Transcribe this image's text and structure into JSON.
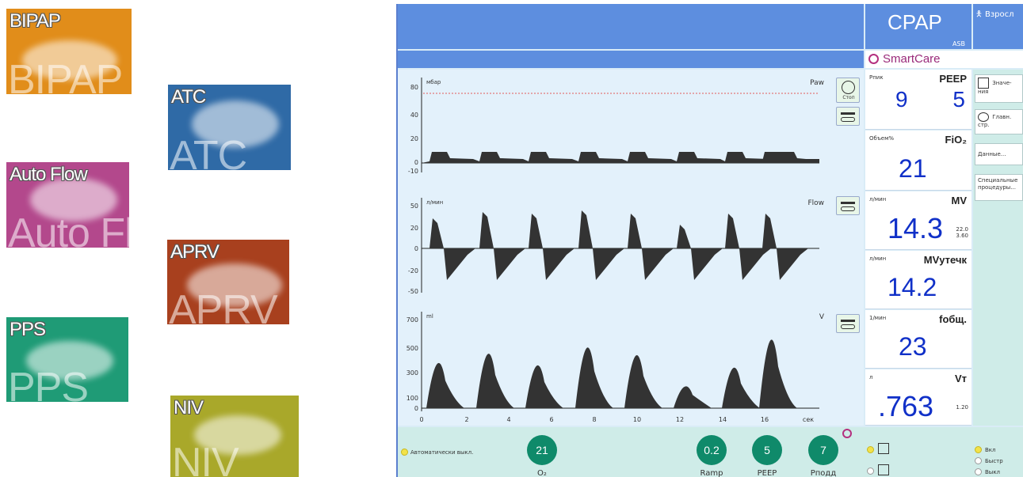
{
  "tiles": [
    {
      "label": "BIPAP",
      "ghost": "BIPAP",
      "color": "#e18d1a"
    },
    {
      "label": "ATC",
      "ghost": "ATC",
      "color": "#2f6aa6"
    },
    {
      "label": "Auto Flow",
      "ghost": "Auto Flo",
      "color": "#b3488c"
    },
    {
      "label": "APRV",
      "ghost": "APRV",
      "color": "#a8401e"
    },
    {
      "label": "PPS",
      "ghost": "PPS",
      "color": "#1f9b76"
    },
    {
      "label": "NIV",
      "ghost": "NIV",
      "color": "#a9a82a"
    }
  ],
  "screen": {
    "mode": "CPAP",
    "mode_sub": "ASB",
    "patient": "Взросл",
    "smartcare": "SmartCare",
    "accent": "#5d8edf",
    "value_color": "#1030c8"
  },
  "plots": [
    {
      "unit": "мбар",
      "name": "Paw",
      "ticks": [
        "80",
        "40",
        "20",
        "0",
        "-10"
      ]
    },
    {
      "unit": "л/мин",
      "name": "Flow",
      "ticks": [
        "50",
        "20",
        "0",
        "-20",
        "-50"
      ]
    },
    {
      "unit": "ml",
      "name": "V",
      "ticks": [
        "700",
        "500",
        "300",
        "100",
        "0"
      ]
    }
  ],
  "time_ticks": [
    "0",
    "2",
    "4",
    "6",
    "8",
    "10",
    "12",
    "14",
    "16",
    "сек"
  ],
  "measurements": {
    "ppeak": {
      "unit": "Pпик",
      "name": "PEEP",
      "v1": "9",
      "v2": "5"
    },
    "fio2": {
      "unit": "Объем%",
      "name": "FiO₂",
      "value": "21"
    },
    "mv": {
      "unit": "л/мин",
      "name": "MV",
      "value": "14.3",
      "hi": "22.0",
      "lo": "3.60"
    },
    "mvleak": {
      "unit": "л/мин",
      "name": "MVутечк",
      "value": "14.2"
    },
    "fobsh": {
      "unit": "1/мин",
      "name": "fобщ.",
      "value": "23"
    },
    "vt": {
      "unit": "л",
      "name": "Vт",
      "value": ".763",
      "hi": "1.20"
    }
  },
  "right_buttons": [
    {
      "text": "Значе-ния"
    },
    {
      "text": "Главн. стр."
    },
    {
      "text": "Данные..."
    },
    {
      "text": "Специальные процедуры..."
    }
  ],
  "side_buttons": [
    {
      "text": "Стоп"
    }
  ],
  "bottom": {
    "auto_text": "Автоматически выкл.",
    "knobs": [
      {
        "value": "21",
        "label": "O₂"
      },
      {
        "value": "0.2",
        "label": "Ramp"
      },
      {
        "value": "5",
        "label": "PEEP"
      },
      {
        "value": "7",
        "label": "Pподд"
      }
    ],
    "right_items": [
      "Вкл",
      "Быстр",
      "Выкл"
    ]
  }
}
